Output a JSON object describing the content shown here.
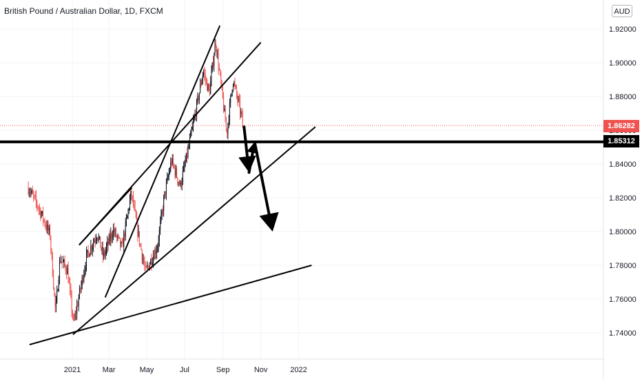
{
  "header": {
    "symbol_title": "British Pound / Australian Dollar, 1D, FXCM",
    "currency_badge": "AUD"
  },
  "price_labels": {
    "current": "1.86282",
    "level": "1.85312"
  },
  "colors": {
    "up_candle": "#131722",
    "down_candle": "#ef5350",
    "drawing": "#000000",
    "grid": "#f0f3fa",
    "current_price": "#ef5350"
  },
  "chart_data": {
    "type": "candlestick",
    "symbol": "GBPAUD",
    "timeframe": "1D",
    "x_ticks": [
      "2021",
      "Mar",
      "May",
      "Jul",
      "Sep",
      "Nov",
      "2022"
    ],
    "y_ticks": [
      "1.92000",
      "1.90000",
      "1.88000",
      "1.86000",
      "1.84000",
      "1.82000",
      "1.80000",
      "1.78000",
      "1.76000",
      "1.74000"
    ],
    "ylim": [
      1.725,
      1.928
    ],
    "current_price": 1.86282,
    "horizontal_level": 1.85312,
    "grid": true,
    "price_path_keypoints": [
      {
        "date": "2020-10-22",
        "price": 1.826
      },
      {
        "date": "2020-11-08",
        "price": 1.814
      },
      {
        "date": "2020-11-26",
        "price": 1.798
      },
      {
        "date": "2020-12-05",
        "price": 1.752
      },
      {
        "date": "2020-12-12",
        "price": 1.784
      },
      {
        "date": "2020-12-24",
        "price": 1.777
      },
      {
        "date": "2021-01-03",
        "price": 1.745
      },
      {
        "date": "2021-01-24",
        "price": 1.785
      },
      {
        "date": "2021-02-10",
        "price": 1.799
      },
      {
        "date": "2021-02-20",
        "price": 1.785
      },
      {
        "date": "2021-03-08",
        "price": 1.801
      },
      {
        "date": "2021-03-22",
        "price": 1.79
      },
      {
        "date": "2021-04-06",
        "price": 1.823
      },
      {
        "date": "2021-04-19",
        "price": 1.795
      },
      {
        "date": "2021-04-29",
        "price": 1.776
      },
      {
        "date": "2021-05-18",
        "price": 1.791
      },
      {
        "date": "2021-05-30",
        "price": 1.822
      },
      {
        "date": "2021-06-10",
        "price": 1.842
      },
      {
        "date": "2021-06-24",
        "price": 1.827
      },
      {
        "date": "2021-07-05",
        "price": 1.845
      },
      {
        "date": "2021-07-20",
        "price": 1.873
      },
      {
        "date": "2021-07-31",
        "price": 1.895
      },
      {
        "date": "2021-08-10",
        "price": 1.882
      },
      {
        "date": "2021-08-20",
        "price": 1.913
      },
      {
        "date": "2021-08-31",
        "price": 1.88
      },
      {
        "date": "2021-09-07",
        "price": 1.858
      },
      {
        "date": "2021-09-17",
        "price": 1.89
      },
      {
        "date": "2021-09-26",
        "price": 1.876
      },
      {
        "date": "2021-10-04",
        "price": 1.863
      }
    ],
    "drawings": {
      "trendlines": [
        {
          "from": {
            "date": "2020-10-24",
            "price": 1.733
          },
          "to": {
            "date": "2022-01-22",
            "price": 1.78
          }
        },
        {
          "from": {
            "date": "2021-01-02",
            "price": 1.739
          },
          "to": {
            "date": "2022-01-28",
            "price": 1.862
          }
        },
        {
          "from": {
            "date": "2021-01-12",
            "price": 1.792
          },
          "to": {
            "date": "2021-04-07",
            "price": 1.826
          }
        },
        {
          "from": {
            "date": "2021-01-12",
            "price": 1.792
          },
          "to": {
            "date": "2021-11-01",
            "price": 1.912
          }
        },
        {
          "from": {
            "date": "2021-02-23",
            "price": 1.761
          },
          "to": {
            "date": "2021-08-27",
            "price": 1.922
          }
        }
      ],
      "arrows": [
        {
          "from": {
            "date": "2021-10-05",
            "price": 1.862
          },
          "to": {
            "date": "2021-10-13",
            "price": 1.835
          }
        },
        {
          "from": {
            "date": "2021-10-13",
            "price": 1.835
          },
          "to": {
            "date": "2021-10-22",
            "price": 1.853
          }
        },
        {
          "from": {
            "date": "2021-10-22",
            "price": 1.853
          },
          "to": {
            "date": "2021-11-20",
            "price": 1.8
          }
        }
      ]
    }
  }
}
